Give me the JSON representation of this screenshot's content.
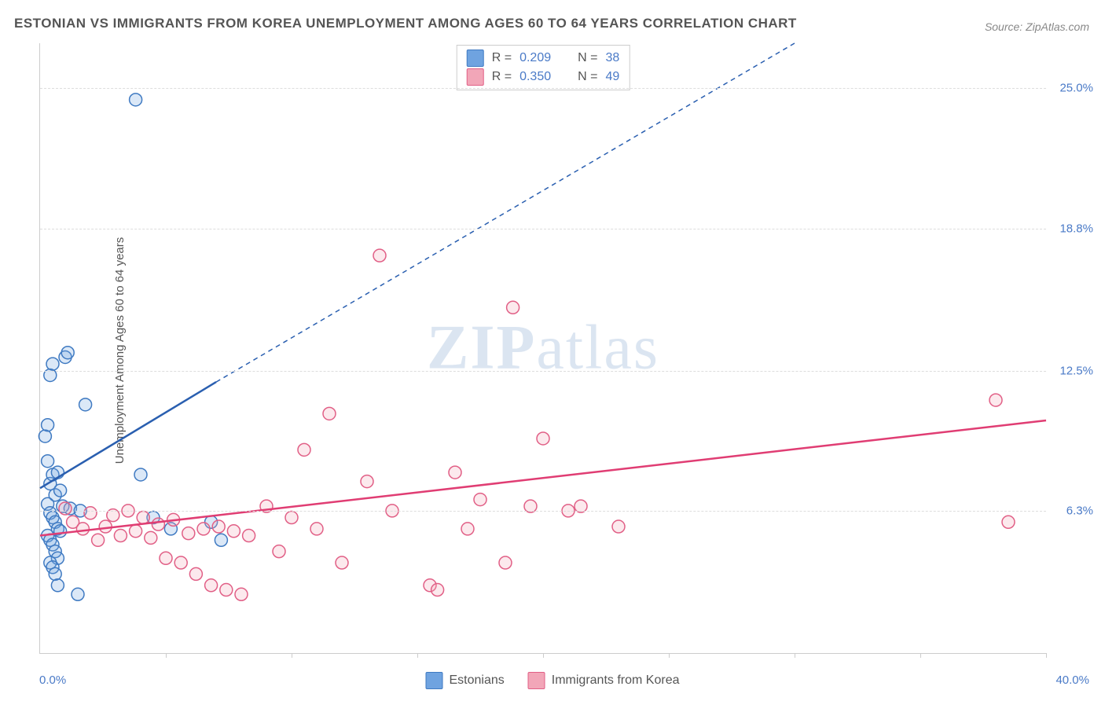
{
  "title": "ESTONIAN VS IMMIGRANTS FROM KOREA UNEMPLOYMENT AMONG AGES 60 TO 64 YEARS CORRELATION CHART",
  "source": "Source: ZipAtlas.com",
  "ylabel": "Unemployment Among Ages 60 to 64 years",
  "watermark_bold": "ZIP",
  "watermark_light": "atlas",
  "chart": {
    "type": "scatter-correlation",
    "background_color": "#ffffff",
    "grid_color": "#dddddd",
    "axis_color": "#cccccc",
    "text_color": "#555555",
    "tick_label_color": "#4a7ac7",
    "xlim": [
      0.0,
      40.0
    ],
    "ylim": [
      0.0,
      27.0
    ],
    "xticks_positions": [
      0,
      5,
      10,
      15,
      20,
      25,
      30,
      35,
      40
    ],
    "xaxis_left_label": "0.0%",
    "xaxis_right_label": "40.0%",
    "yticks": [
      {
        "value": 25.0,
        "label": "25.0%"
      },
      {
        "value": 18.8,
        "label": "18.8%"
      },
      {
        "value": 12.5,
        "label": "12.5%"
      },
      {
        "value": 6.3,
        "label": "6.3%"
      }
    ],
    "marker_radius": 8,
    "marker_stroke_width": 1.5,
    "marker_fill_opacity": 0.25,
    "line_width_solid": 2.5,
    "line_width_dash": 1.5,
    "dash_pattern": "6,5",
    "series": [
      {
        "name": "Estonians",
        "color": "#6fa3e0",
        "stroke": "#3f7ac2",
        "line_color": "#2a5fb0",
        "stats": {
          "R": "0.209",
          "N": "38"
        },
        "trend_solid": {
          "x1": 0.0,
          "y1": 7.3,
          "x2": 7.0,
          "y2": 12.0
        },
        "trend_dash": {
          "x1": 7.0,
          "y1": 12.0,
          "x2": 30.0,
          "y2": 27.0
        },
        "points": [
          [
            0.2,
            9.6
          ],
          [
            0.3,
            10.1
          ],
          [
            0.4,
            12.3
          ],
          [
            0.5,
            12.8
          ],
          [
            1.0,
            13.1
          ],
          [
            1.1,
            13.3
          ],
          [
            0.4,
            7.5
          ],
          [
            0.5,
            7.9
          ],
          [
            0.6,
            7.0
          ],
          [
            0.7,
            8.0
          ],
          [
            0.8,
            7.2
          ],
          [
            0.9,
            6.5
          ],
          [
            0.3,
            6.6
          ],
          [
            0.4,
            6.2
          ],
          [
            0.5,
            6.0
          ],
          [
            0.6,
            5.8
          ],
          [
            0.7,
            5.5
          ],
          [
            0.8,
            5.4
          ],
          [
            0.3,
            5.2
          ],
          [
            0.4,
            5.0
          ],
          [
            0.5,
            4.8
          ],
          [
            0.6,
            4.5
          ],
          [
            0.7,
            4.2
          ],
          [
            0.4,
            4.0
          ],
          [
            0.5,
            3.8
          ],
          [
            0.6,
            3.5
          ],
          [
            0.7,
            3.0
          ],
          [
            1.5,
            2.6
          ],
          [
            1.8,
            11.0
          ],
          [
            1.2,
            6.4
          ],
          [
            1.6,
            6.3
          ],
          [
            4.0,
            7.9
          ],
          [
            4.5,
            6.0
          ],
          [
            5.2,
            5.5
          ],
          [
            6.8,
            5.8
          ],
          [
            7.2,
            5.0
          ],
          [
            3.8,
            24.5
          ],
          [
            0.3,
            8.5
          ]
        ]
      },
      {
        "name": "Immigrants from Korea",
        "color": "#f2a6b8",
        "stroke": "#e15f86",
        "line_color": "#e03d73",
        "stats": {
          "R": "0.350",
          "N": "49"
        },
        "trend_solid": {
          "x1": 0.0,
          "y1": 5.2,
          "x2": 40.0,
          "y2": 10.3
        },
        "trend_dash": null,
        "points": [
          [
            1.0,
            6.4
          ],
          [
            1.3,
            5.8
          ],
          [
            1.7,
            5.5
          ],
          [
            2.0,
            6.2
          ],
          [
            2.3,
            5.0
          ],
          [
            2.6,
            5.6
          ],
          [
            2.9,
            6.1
          ],
          [
            3.2,
            5.2
          ],
          [
            3.5,
            6.3
          ],
          [
            3.8,
            5.4
          ],
          [
            4.1,
            6.0
          ],
          [
            4.4,
            5.1
          ],
          [
            4.7,
            5.7
          ],
          [
            5.0,
            4.2
          ],
          [
            5.3,
            5.9
          ],
          [
            5.6,
            4.0
          ],
          [
            5.9,
            5.3
          ],
          [
            6.2,
            3.5
          ],
          [
            6.5,
            5.5
          ],
          [
            6.8,
            3.0
          ],
          [
            7.1,
            5.6
          ],
          [
            7.4,
            2.8
          ],
          [
            7.7,
            5.4
          ],
          [
            8.0,
            2.6
          ],
          [
            8.3,
            5.2
          ],
          [
            9.0,
            6.5
          ],
          [
            9.5,
            4.5
          ],
          [
            10.0,
            6.0
          ],
          [
            10.5,
            9.0
          ],
          [
            11.0,
            5.5
          ],
          [
            11.5,
            10.6
          ],
          [
            12.0,
            4.0
          ],
          [
            13.0,
            7.6
          ],
          [
            13.5,
            17.6
          ],
          [
            14.0,
            6.3
          ],
          [
            15.5,
            3.0
          ],
          [
            15.8,
            2.8
          ],
          [
            16.5,
            8.0
          ],
          [
            17.0,
            5.5
          ],
          [
            17.5,
            6.8
          ],
          [
            18.5,
            4.0
          ],
          [
            18.8,
            15.3
          ],
          [
            19.5,
            6.5
          ],
          [
            20.0,
            9.5
          ],
          [
            21.0,
            6.3
          ],
          [
            21.5,
            6.5
          ],
          [
            23.0,
            5.6
          ],
          [
            38.0,
            11.2
          ],
          [
            38.5,
            5.8
          ]
        ]
      }
    ],
    "legend_top": {
      "R_label": "R =",
      "N_label": "N ="
    },
    "legend_bottom": [
      {
        "key": "series1",
        "label": "Estonians"
      },
      {
        "key": "series2",
        "label": "Immigrants from Korea"
      }
    ]
  }
}
